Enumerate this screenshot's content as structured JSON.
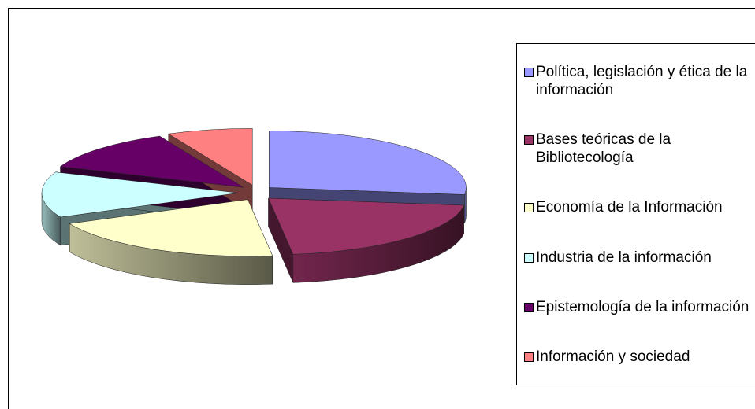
{
  "chart_data": {
    "type": "pie",
    "categories": [
      "Política, legislación y ética de la información",
      "Bases teóricas de la Bibliotecología",
      "Economía de la Información",
      "Industria de la información",
      "Epistemología de la información",
      "Información y sociedad"
    ],
    "values": [
      27,
      21,
      20,
      13,
      12,
      7
    ],
    "colors": [
      "#9999ff",
      "#993366",
      "#ffffcc",
      "#ccffff",
      "#660066",
      "#ff8080"
    ],
    "legend": "right"
  }
}
